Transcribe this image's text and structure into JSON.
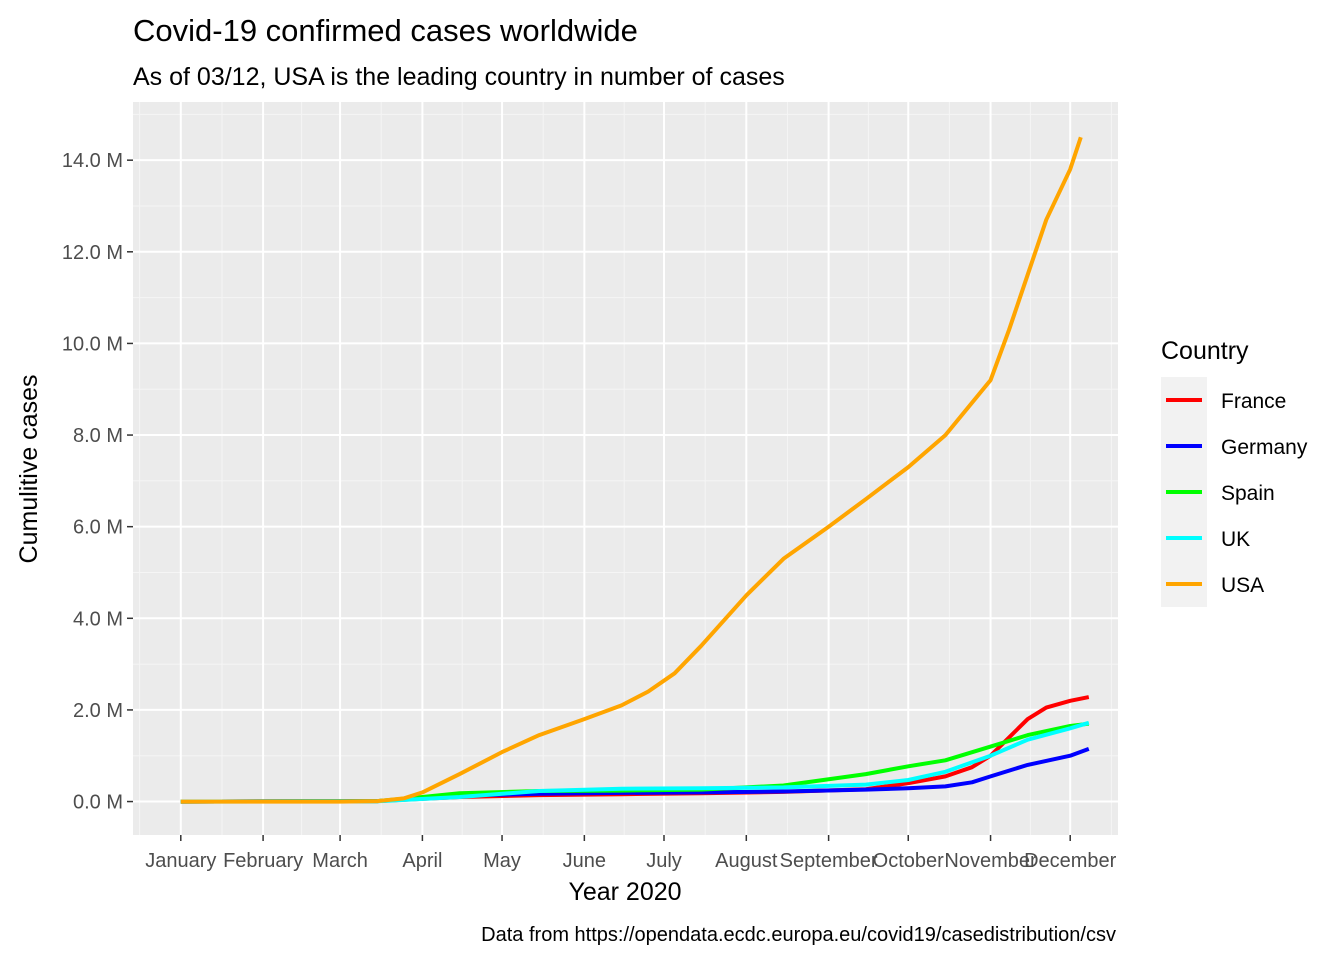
{
  "chart_data": {
    "type": "line",
    "title": "Covid-19 confirmed cases worldwide",
    "subtitle": "As of 03/12, USA is the leading country in number of cases",
    "xlabel": "Year 2020",
    "ylabel": "Cumulitive cases",
    "caption": "Data from https://opendata.ecdc.europa.eu/covid19/casedistribution/csv",
    "x_ticks": [
      "January",
      "February",
      "March",
      "April",
      "May",
      "June",
      "July",
      "August",
      "September",
      "October",
      "November",
      "December"
    ],
    "x_tick_dates": [
      "2020-01-01",
      "2020-02-01",
      "2020-03-01",
      "2020-04-01",
      "2020-05-01",
      "2020-06-01",
      "2020-07-01",
      "2020-08-01",
      "2020-09-01",
      "2020-10-01",
      "2020-11-01",
      "2020-12-01"
    ],
    "xlim": [
      "2019-12-14",
      "2020-12-19"
    ],
    "y_ticks": [
      0,
      2,
      4,
      6,
      8,
      10,
      12,
      14
    ],
    "y_tick_labels": [
      "0.0 M",
      "2.0 M",
      "4.0 M",
      "6.0 M",
      "8.0 M",
      "10.0 M",
      "12.0 M",
      "14.0 M"
    ],
    "ylim": [
      -0.73,
      15.27
    ],
    "y_unit": "M",
    "grid": true,
    "legend": {
      "title": "Country",
      "position": "right"
    },
    "series": [
      {
        "name": "France",
        "color": "#FF0000",
        "points": [
          [
            "2020-01-01",
            0
          ],
          [
            "2020-03-15",
            0.01
          ],
          [
            "2020-04-15",
            0.1
          ],
          [
            "2020-05-15",
            0.14
          ],
          [
            "2020-06-15",
            0.16
          ],
          [
            "2020-07-15",
            0.18
          ],
          [
            "2020-08-15",
            0.21
          ],
          [
            "2020-09-15",
            0.27
          ],
          [
            "2020-10-01",
            0.4
          ],
          [
            "2020-10-15",
            0.55
          ],
          [
            "2020-10-25",
            0.75
          ],
          [
            "2020-11-01",
            1.0
          ],
          [
            "2020-11-08",
            1.4
          ],
          [
            "2020-11-15",
            1.8
          ],
          [
            "2020-11-22",
            2.05
          ],
          [
            "2020-12-01",
            2.2
          ],
          [
            "2020-12-08",
            2.28
          ]
        ]
      },
      {
        "name": "Germany",
        "color": "#0000FF",
        "points": [
          [
            "2020-01-01",
            0
          ],
          [
            "2020-03-15",
            0.01
          ],
          [
            "2020-04-15",
            0.13
          ],
          [
            "2020-05-15",
            0.17
          ],
          [
            "2020-06-15",
            0.19
          ],
          [
            "2020-07-15",
            0.2
          ],
          [
            "2020-08-15",
            0.22
          ],
          [
            "2020-09-15",
            0.26
          ],
          [
            "2020-10-01",
            0.29
          ],
          [
            "2020-10-15",
            0.33
          ],
          [
            "2020-10-25",
            0.42
          ],
          [
            "2020-11-01",
            0.55
          ],
          [
            "2020-11-15",
            0.8
          ],
          [
            "2020-12-01",
            1.0
          ],
          [
            "2020-12-08",
            1.15
          ]
        ]
      },
      {
        "name": "Spain",
        "color": "#00FF00",
        "points": [
          [
            "2020-01-01",
            0
          ],
          [
            "2020-03-15",
            0.01
          ],
          [
            "2020-04-01",
            0.1
          ],
          [
            "2020-04-15",
            0.18
          ],
          [
            "2020-05-15",
            0.23
          ],
          [
            "2020-06-15",
            0.24
          ],
          [
            "2020-07-15",
            0.26
          ],
          [
            "2020-08-15",
            0.35
          ],
          [
            "2020-09-15",
            0.6
          ],
          [
            "2020-10-01",
            0.77
          ],
          [
            "2020-10-15",
            0.9
          ],
          [
            "2020-11-01",
            1.2
          ],
          [
            "2020-11-15",
            1.45
          ],
          [
            "2020-12-01",
            1.65
          ],
          [
            "2020-12-08",
            1.7
          ]
        ]
      },
      {
        "name": "UK",
        "color": "#00FFFF",
        "points": [
          [
            "2020-01-01",
            0
          ],
          [
            "2020-03-15",
            0.005
          ],
          [
            "2020-04-15",
            0.1
          ],
          [
            "2020-05-15",
            0.23
          ],
          [
            "2020-06-15",
            0.28
          ],
          [
            "2020-07-15",
            0.29
          ],
          [
            "2020-08-15",
            0.31
          ],
          [
            "2020-09-15",
            0.37
          ],
          [
            "2020-10-01",
            0.47
          ],
          [
            "2020-10-15",
            0.65
          ],
          [
            "2020-11-01",
            1.0
          ],
          [
            "2020-11-15",
            1.35
          ],
          [
            "2020-12-01",
            1.6
          ],
          [
            "2020-12-08",
            1.72
          ]
        ]
      },
      {
        "name": "USA",
        "color": "#FFA500",
        "points": [
          [
            "2020-01-01",
            0
          ],
          [
            "2020-03-01",
            0
          ],
          [
            "2020-03-15",
            0.01
          ],
          [
            "2020-03-25",
            0.07
          ],
          [
            "2020-04-01",
            0.2
          ],
          [
            "2020-04-15",
            0.6
          ],
          [
            "2020-05-01",
            1.08
          ],
          [
            "2020-05-15",
            1.45
          ],
          [
            "2020-06-01",
            1.8
          ],
          [
            "2020-06-15",
            2.1
          ],
          [
            "2020-06-25",
            2.4
          ],
          [
            "2020-07-05",
            2.8
          ],
          [
            "2020-07-15",
            3.4
          ],
          [
            "2020-08-01",
            4.5
          ],
          [
            "2020-08-15",
            5.3
          ],
          [
            "2020-09-01",
            6.0
          ],
          [
            "2020-09-15",
            6.6
          ],
          [
            "2020-10-01",
            7.3
          ],
          [
            "2020-10-15",
            8.0
          ],
          [
            "2020-11-01",
            9.2
          ],
          [
            "2020-11-08",
            10.3
          ],
          [
            "2020-11-15",
            11.5
          ],
          [
            "2020-11-22",
            12.7
          ],
          [
            "2020-12-01",
            13.8
          ],
          [
            "2020-12-05",
            14.5
          ]
        ]
      }
    ]
  }
}
